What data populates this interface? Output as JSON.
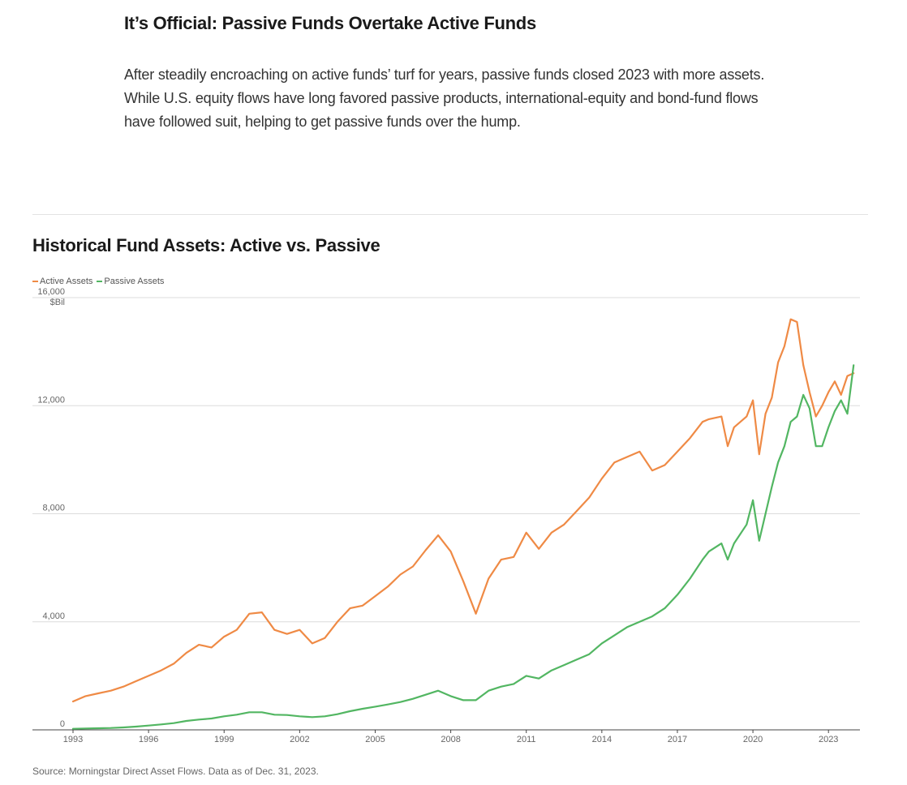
{
  "page": {
    "headline": "It’s Official: Passive Funds Overtake Active Funds",
    "intro": "After steadily encroaching on active funds’ turf for years, passive funds closed 2023 with more assets. While U.S. equity flows have long favored passive products, international-equity and bond-fund flows have followed suit, helping to get passive funds over the hump.",
    "source": "Source: Morningstar Direct Asset Flows. Data as of Dec. 31, 2023."
  },
  "chart_data": {
    "type": "line",
    "title": "Historical Fund Assets: Active vs. Passive",
    "xlabel": "",
    "ylabel": "$Bil",
    "ylim": [
      0,
      16000
    ],
    "xlim": [
      1993,
      2024.25
    ],
    "y_ticks": [
      {
        "value": 0,
        "label": "0"
      },
      {
        "value": 4000,
        "label": "4,000"
      },
      {
        "value": 8000,
        "label": "8,000"
      },
      {
        "value": 12000,
        "label": "12,000"
      },
      {
        "value": 16000,
        "label": "16,000"
      }
    ],
    "y_unit_label": "$Bil",
    "x_ticks": [
      {
        "value": 1993,
        "label": "1993"
      },
      {
        "value": 1996,
        "label": "1996"
      },
      {
        "value": 1999,
        "label": "1999"
      },
      {
        "value": 2002,
        "label": "2002"
      },
      {
        "value": 2005,
        "label": "2005"
      },
      {
        "value": 2008,
        "label": "2008"
      },
      {
        "value": 2011,
        "label": "2011"
      },
      {
        "value": 2014,
        "label": "2014"
      },
      {
        "value": 2017,
        "label": "2017"
      },
      {
        "value": 2020,
        "label": "2020"
      },
      {
        "value": 2023,
        "label": "2023"
      }
    ],
    "grid": true,
    "legend": "top-left",
    "series": [
      {
        "name": "Active Assets",
        "color": "#ef8a45",
        "x": [
          1993,
          1993.5,
          1994,
          1994.5,
          1995,
          1995.5,
          1996,
          1996.5,
          1997,
          1997.5,
          1998,
          1998.5,
          1999,
          1999.5,
          2000,
          2000.5,
          2001,
          2001.5,
          2002,
          2002.5,
          2003,
          2003.5,
          2004,
          2004.5,
          2005,
          2005.5,
          2006,
          2006.5,
          2007,
          2007.5,
          2008,
          2008.5,
          2009,
          2009.5,
          2010,
          2010.5,
          2011,
          2011.5,
          2012,
          2012.5,
          2013,
          2013.5,
          2014,
          2014.5,
          2015,
          2015.5,
          2016,
          2016.5,
          2017,
          2017.5,
          2018,
          2018.25,
          2018.75,
          2019,
          2019.25,
          2019.75,
          2020,
          2020.25,
          2020.5,
          2020.75,
          2021,
          2021.25,
          2021.5,
          2021.75,
          2022,
          2022.25,
          2022.5,
          2022.75,
          2023,
          2023.25,
          2023.5,
          2023.75,
          2024
        ],
        "y": [
          1050,
          1250,
          1350,
          1450,
          1600,
          1800,
          2000,
          2200,
          2450,
          2850,
          3150,
          3050,
          3450,
          3700,
          4300,
          4350,
          3700,
          3550,
          3700,
          3200,
          3400,
          4000,
          4500,
          4600,
          4950,
          5300,
          5750,
          6050,
          6650,
          7200,
          6600,
          5500,
          4300,
          5600,
          6300,
          6400,
          7300,
          6700,
          7300,
          7600,
          8100,
          8600,
          9300,
          9900,
          10100,
          10300,
          9600,
          9800,
          10300,
          10800,
          11400,
          11500,
          11600,
          10500,
          11200,
          11600,
          12200,
          10200,
          11700,
          12300,
          13600,
          14200,
          15200,
          15100,
          13500,
          12500,
          11600,
          12000,
          12500,
          12900,
          12400,
          13100,
          13200
        ]
      },
      {
        "name": "Passive Assets",
        "color": "#52b662",
        "x": [
          1993,
          1993.5,
          1994,
          1994.5,
          1995,
          1995.5,
          1996,
          1996.5,
          1997,
          1997.5,
          1998,
          1998.5,
          1999,
          1999.5,
          2000,
          2000.5,
          2001,
          2001.5,
          2002,
          2002.5,
          2003,
          2003.5,
          2004,
          2004.5,
          2005,
          2005.5,
          2006,
          2006.5,
          2007,
          2007.5,
          2008,
          2008.5,
          2009,
          2009.5,
          2010,
          2010.5,
          2011,
          2011.5,
          2012,
          2012.5,
          2013,
          2013.5,
          2014,
          2014.5,
          2015,
          2015.5,
          2016,
          2016.5,
          2017,
          2017.5,
          2018,
          2018.25,
          2018.75,
          2019,
          2019.25,
          2019.75,
          2020,
          2020.25,
          2020.5,
          2020.75,
          2021,
          2021.25,
          2021.5,
          2021.75,
          2022,
          2022.25,
          2022.5,
          2022.75,
          2023,
          2023.25,
          2023.5,
          2023.75,
          2024
        ],
        "y": [
          40,
          50,
          60,
          70,
          90,
          120,
          160,
          200,
          250,
          330,
          380,
          420,
          500,
          560,
          650,
          650,
          560,
          550,
          500,
          470,
          500,
          580,
          690,
          780,
          860,
          940,
          1030,
          1150,
          1300,
          1450,
          1250,
          1100,
          1100,
          1450,
          1600,
          1700,
          2000,
          1900,
          2200,
          2400,
          2600,
          2800,
          3200,
          3500,
          3800,
          4000,
          4200,
          4500,
          5000,
          5600,
          6300,
          6600,
          6900,
          6300,
          6900,
          7600,
          8500,
          7000,
          8000,
          9000,
          9900,
          10500,
          11400,
          11600,
          12400,
          11900,
          10500,
          10500,
          11200,
          11800,
          12200,
          11700,
          13500
        ]
      }
    ]
  }
}
